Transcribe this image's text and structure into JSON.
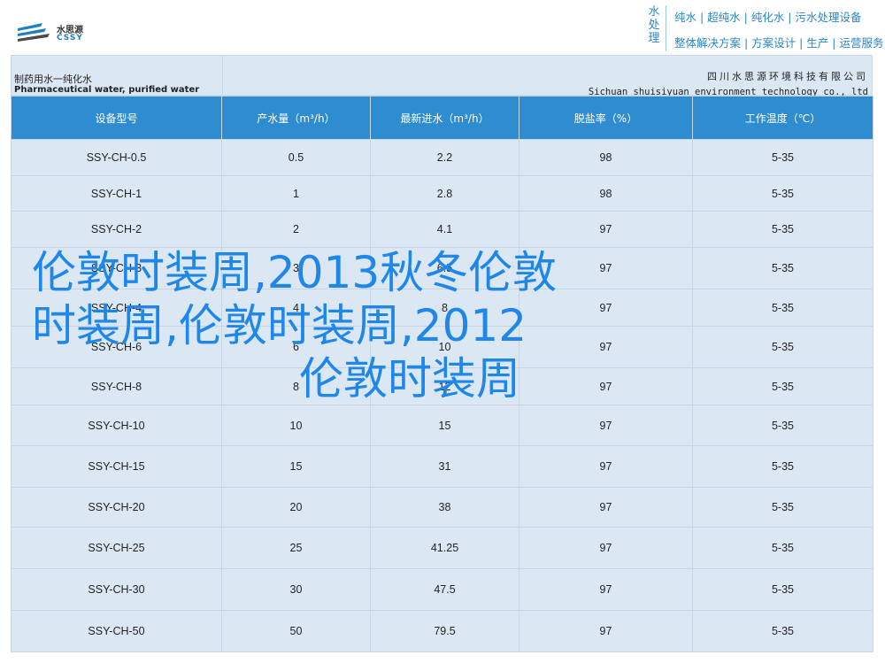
{
  "header": {
    "logo_cn": "水思源",
    "logo_en": "CSSY",
    "brand_vertical": "水处理",
    "brand_line1": "纯水 | 超纯水 | 纯化水 | 污水处理设备",
    "brand_line2": "整体解决方案 | 方案设计 | 生产 | 运营服务"
  },
  "title_bar": {
    "product_cn": "制药用水一纯化水",
    "product_en": "Pharmaceutical water, purified water",
    "company_cn": "四川水思源环境科技有限公司",
    "company_en": "Sichuan shuisiyuan environment technology co., ltd"
  },
  "table": {
    "headers": [
      "设备型号",
      "产水量（m³/h）",
      "最新进水（m³/h）",
      "脱盐率（%）",
      "工作温度（℃）"
    ],
    "rows": [
      [
        "SSY-CH-0.5",
        "0.5",
        "2.2",
        "98",
        "5-35"
      ],
      [
        "SSY-CH-1",
        "1",
        "2.8",
        "98",
        "5-35"
      ],
      [
        "SSY-CH-2",
        "2",
        "4.1",
        "97",
        "5-35"
      ],
      [
        "SSY-CH-3",
        "3",
        "6.5",
        "97",
        "5-35"
      ],
      [
        "SSY-CH-4",
        "4",
        "8",
        "97",
        "5-35"
      ],
      [
        "SSY-CH-6",
        "6",
        "10",
        "97",
        "5-35"
      ],
      [
        "SSY-CH-8",
        "8",
        "12",
        "97",
        "5-35"
      ],
      [
        "SSY-CH-10",
        "10",
        "15",
        "97",
        "5-35"
      ],
      [
        "SSY-CH-15",
        "15",
        "31",
        "97",
        "5-35"
      ],
      [
        "SSY-CH-20",
        "20",
        "38",
        "97",
        "5-35"
      ],
      [
        "SSY-CH-25",
        "25",
        "41.25",
        "97",
        "5-35"
      ],
      [
        "SSY-CH-30",
        "30",
        "47.5",
        "97",
        "5-35"
      ],
      [
        "SSY-CH-50",
        "50",
        "79.5",
        "97",
        "5-35"
      ]
    ]
  },
  "overlay": {
    "line1": "伦敦时装周,2013秋冬伦敦",
    "line2": "时装周,伦敦时装周,2012",
    "line3": "伦敦时装周"
  },
  "colors": {
    "header_blue": "#2e8cd0",
    "row_light": "#dbe8f4",
    "overlay_blue": "#1f86ea"
  }
}
